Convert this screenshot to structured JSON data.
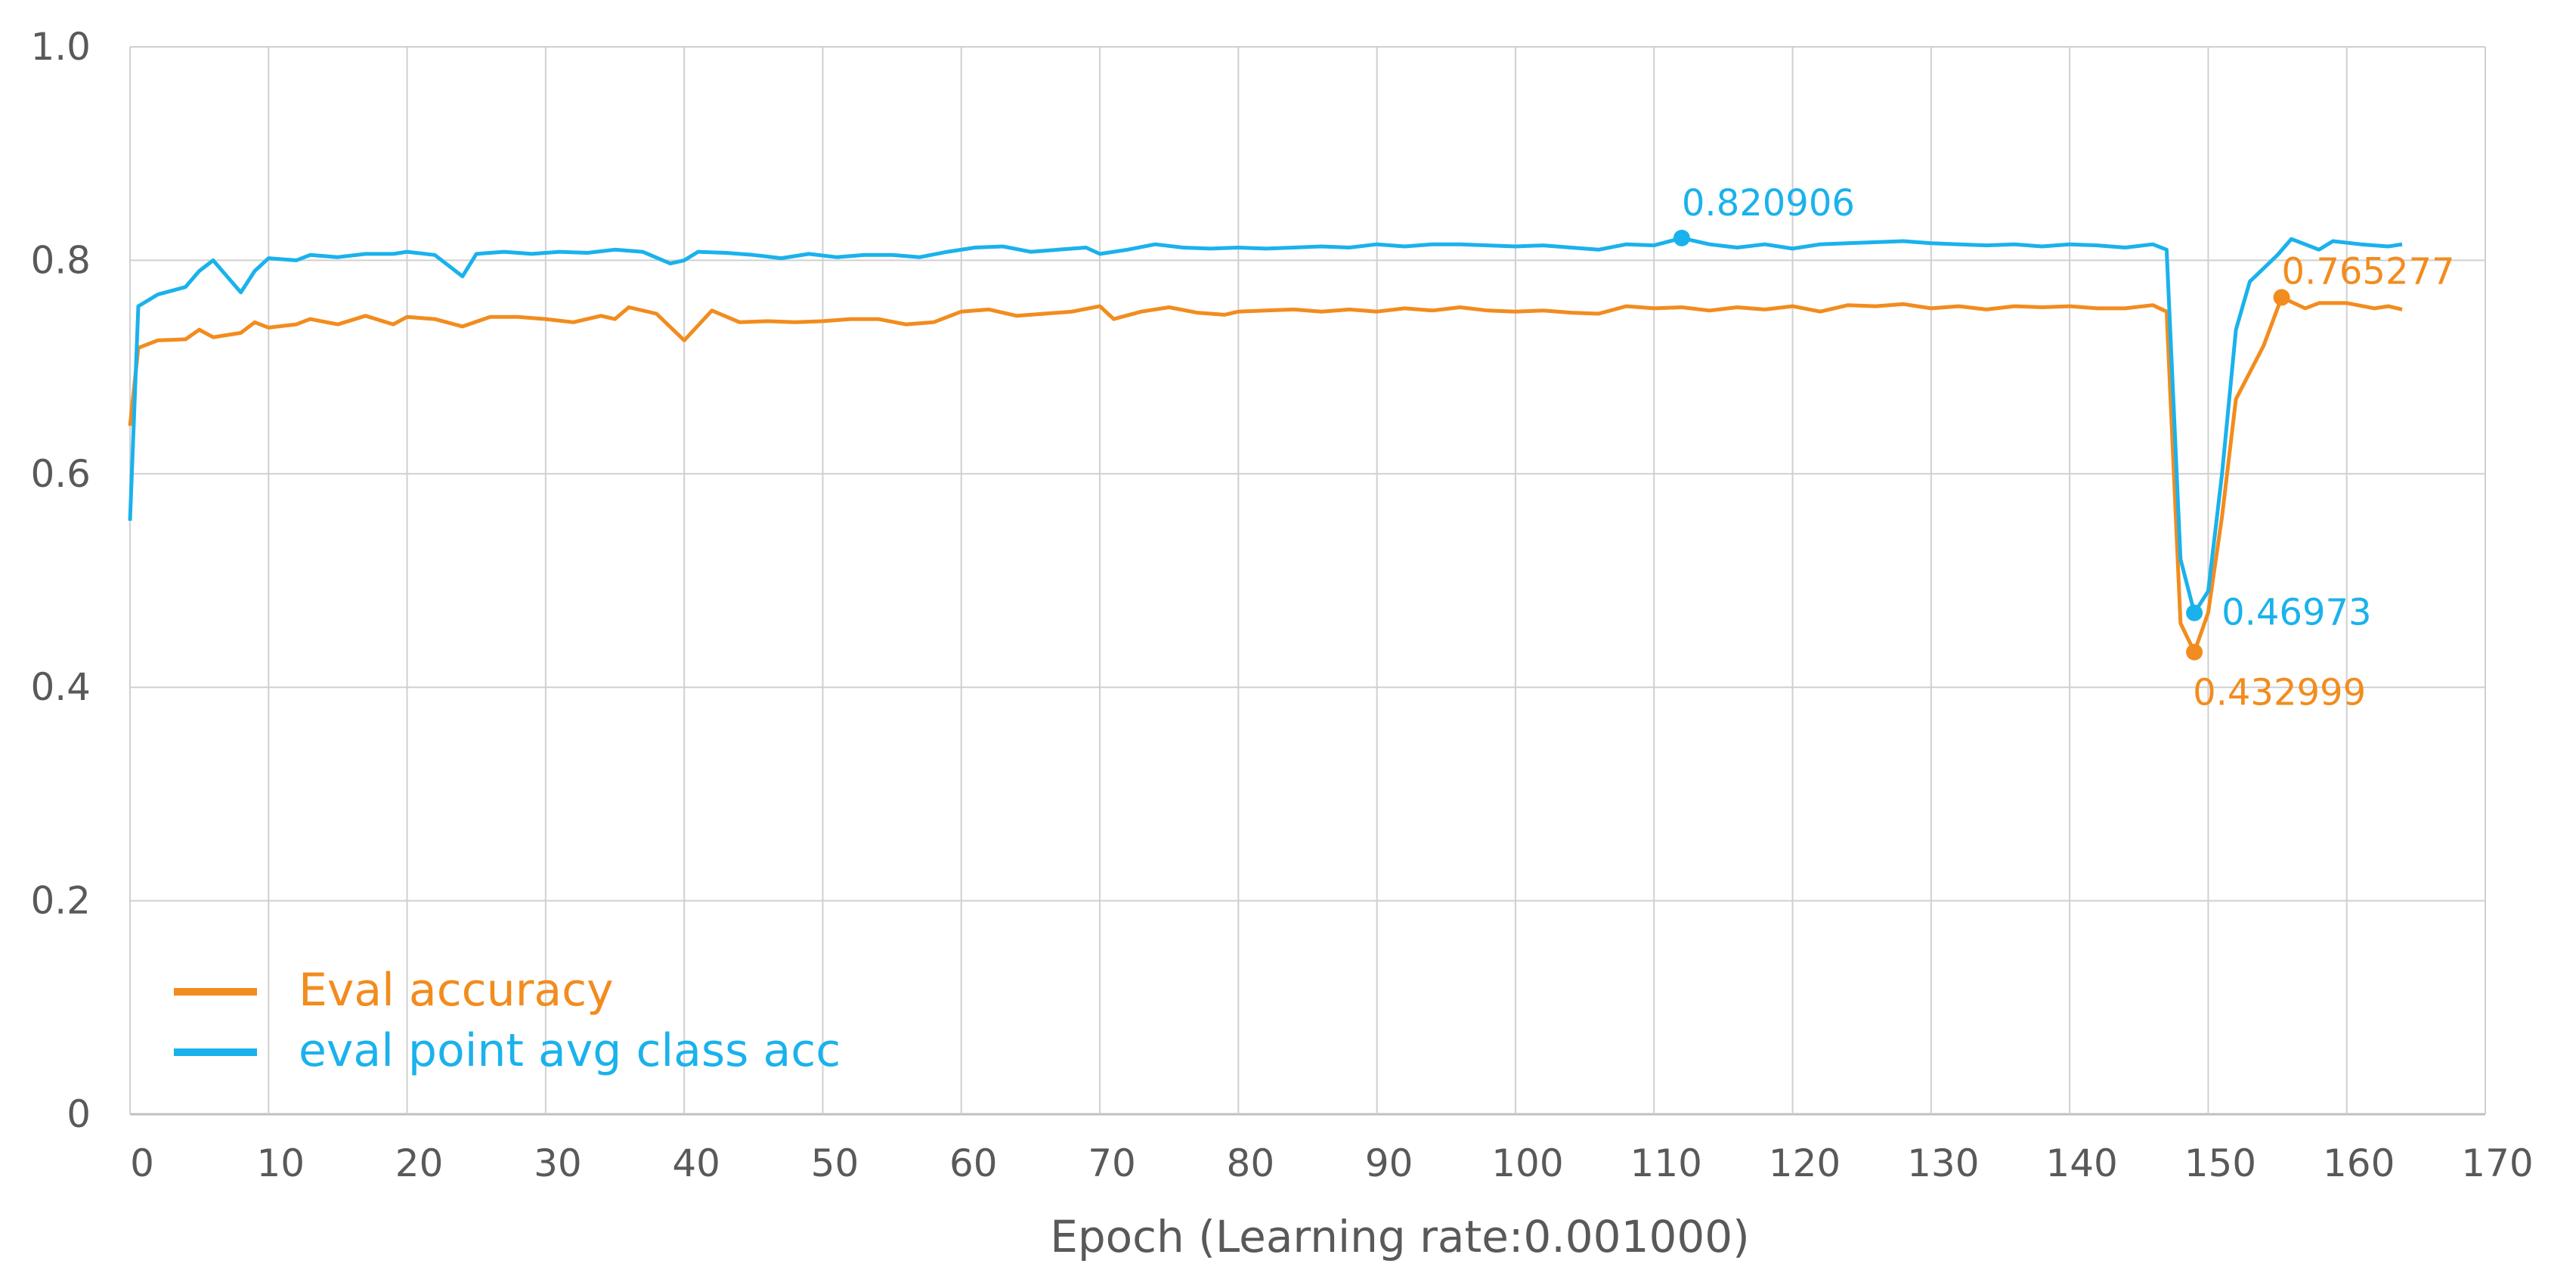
{
  "chart_data": {
    "type": "line",
    "title": "",
    "xlabel": "Epoch (Learning rate:0.001000)",
    "ylabel": "",
    "xlim": [
      0,
      170
    ],
    "ylim": [
      0,
      1.0
    ],
    "xticks": [
      "0",
      "10",
      "20",
      "30",
      "40",
      "50",
      "60",
      "70",
      "80",
      "90",
      "100",
      "110",
      "120",
      "130",
      "140",
      "150",
      "160",
      "170"
    ],
    "yticks": [
      "0",
      "0.2",
      "0.4",
      "0.6",
      "0.8",
      "1.0"
    ],
    "grid": true,
    "legend_position": "bottom-left",
    "series": [
      {
        "name": "Eval accuracy",
        "color": "#F28C1E",
        "points": [
          [
            0,
            0.645
          ],
          [
            0.6,
            0.718
          ],
          [
            2,
            0.725
          ],
          [
            4,
            0.726
          ],
          [
            5,
            0.735
          ],
          [
            6,
            0.728
          ],
          [
            8,
            0.732
          ],
          [
            9,
            0.742
          ],
          [
            10,
            0.737
          ],
          [
            12,
            0.74
          ],
          [
            13,
            0.745
          ],
          [
            15,
            0.74
          ],
          [
            17,
            0.748
          ],
          [
            19,
            0.74
          ],
          [
            20,
            0.747
          ],
          [
            22,
            0.745
          ],
          [
            24,
            0.738
          ],
          [
            26,
            0.747
          ],
          [
            28,
            0.747
          ],
          [
            30,
            0.745
          ],
          [
            32,
            0.742
          ],
          [
            34,
            0.748
          ],
          [
            35,
            0.745
          ],
          [
            36,
            0.756
          ],
          [
            38,
            0.75
          ],
          [
            40,
            0.725
          ],
          [
            42,
            0.753
          ],
          [
            44,
            0.742
          ],
          [
            46,
            0.743
          ],
          [
            48,
            0.742
          ],
          [
            50,
            0.743
          ],
          [
            52,
            0.745
          ],
          [
            54,
            0.745
          ],
          [
            56,
            0.74
          ],
          [
            58,
            0.742
          ],
          [
            60,
            0.752
          ],
          [
            62,
            0.754
          ],
          [
            64,
            0.748
          ],
          [
            66,
            0.75
          ],
          [
            68,
            0.752
          ],
          [
            70,
            0.757
          ],
          [
            71,
            0.745
          ],
          [
            73,
            0.752
          ],
          [
            75,
            0.756
          ],
          [
            77,
            0.751
          ],
          [
            79,
            0.749
          ],
          [
            80,
            0.752
          ],
          [
            82,
            0.753
          ],
          [
            84,
            0.754
          ],
          [
            86,
            0.752
          ],
          [
            88,
            0.754
          ],
          [
            90,
            0.752
          ],
          [
            92,
            0.755
          ],
          [
            94,
            0.753
          ],
          [
            96,
            0.756
          ],
          [
            98,
            0.753
          ],
          [
            100,
            0.752
          ],
          [
            102,
            0.753
          ],
          [
            104,
            0.751
          ],
          [
            106,
            0.75
          ],
          [
            108,
            0.757
          ],
          [
            110,
            0.755
          ],
          [
            112,
            0.756
          ],
          [
            114,
            0.753
          ],
          [
            116,
            0.756
          ],
          [
            118,
            0.754
          ],
          [
            120,
            0.757
          ],
          [
            122,
            0.752
          ],
          [
            124,
            0.758
          ],
          [
            126,
            0.757
          ],
          [
            128,
            0.759
          ],
          [
            130,
            0.755
          ],
          [
            132,
            0.757
          ],
          [
            134,
            0.754
          ],
          [
            136,
            0.757
          ],
          [
            138,
            0.756
          ],
          [
            140,
            0.757
          ],
          [
            142,
            0.755
          ],
          [
            144,
            0.755
          ],
          [
            146,
            0.758
          ],
          [
            147,
            0.752
          ],
          [
            148,
            0.46
          ],
          [
            149,
            0.432999
          ],
          [
            150,
            0.47
          ],
          [
            151,
            0.56
          ],
          [
            152,
            0.67
          ],
          [
            154,
            0.72
          ],
          [
            155.3,
            0.765277
          ],
          [
            157,
            0.755
          ],
          [
            158,
            0.76
          ],
          [
            160,
            0.76
          ],
          [
            162,
            0.755
          ],
          [
            163,
            0.757
          ],
          [
            164,
            0.754
          ]
        ]
      },
      {
        "name": "eval point avg class acc",
        "color": "#1AB2EC",
        "points": [
          [
            0,
            0.556
          ],
          [
            0.6,
            0.757
          ],
          [
            2,
            0.768
          ],
          [
            4,
            0.775
          ],
          [
            5,
            0.79
          ],
          [
            6,
            0.8
          ],
          [
            7,
            0.785
          ],
          [
            8,
            0.77
          ],
          [
            9,
            0.79
          ],
          [
            10,
            0.802
          ],
          [
            12,
            0.8
          ],
          [
            13,
            0.805
          ],
          [
            15,
            0.803
          ],
          [
            17,
            0.806
          ],
          [
            19,
            0.806
          ],
          [
            20,
            0.808
          ],
          [
            22,
            0.805
          ],
          [
            24,
            0.785
          ],
          [
            25,
            0.806
          ],
          [
            27,
            0.808
          ],
          [
            29,
            0.806
          ],
          [
            31,
            0.808
          ],
          [
            33,
            0.807
          ],
          [
            35,
            0.81
          ],
          [
            37,
            0.808
          ],
          [
            39,
            0.797
          ],
          [
            40,
            0.8
          ],
          [
            41,
            0.808
          ],
          [
            43,
            0.807
          ],
          [
            45,
            0.805
          ],
          [
            47,
            0.802
          ],
          [
            49,
            0.806
          ],
          [
            51,
            0.803
          ],
          [
            53,
            0.805
          ],
          [
            55,
            0.805
          ],
          [
            57,
            0.803
          ],
          [
            59,
            0.808
          ],
          [
            61,
            0.812
          ],
          [
            63,
            0.813
          ],
          [
            65,
            0.808
          ],
          [
            67,
            0.81
          ],
          [
            69,
            0.812
          ],
          [
            70,
            0.806
          ],
          [
            72,
            0.81
          ],
          [
            74,
            0.815
          ],
          [
            76,
            0.812
          ],
          [
            78,
            0.811
          ],
          [
            80,
            0.812
          ],
          [
            82,
            0.811
          ],
          [
            84,
            0.812
          ],
          [
            86,
            0.813
          ],
          [
            88,
            0.812
          ],
          [
            90,
            0.815
          ],
          [
            92,
            0.813
          ],
          [
            94,
            0.815
          ],
          [
            96,
            0.815
          ],
          [
            98,
            0.814
          ],
          [
            100,
            0.813
          ],
          [
            102,
            0.814
          ],
          [
            104,
            0.812
          ],
          [
            106,
            0.81
          ],
          [
            108,
            0.815
          ],
          [
            110,
            0.814
          ],
          [
            112,
            0.820906
          ],
          [
            114,
            0.815
          ],
          [
            116,
            0.812
          ],
          [
            118,
            0.815
          ],
          [
            120,
            0.811
          ],
          [
            122,
            0.815
          ],
          [
            124,
            0.816
          ],
          [
            126,
            0.817
          ],
          [
            128,
            0.818
          ],
          [
            130,
            0.816
          ],
          [
            132,
            0.815
          ],
          [
            134,
            0.814
          ],
          [
            136,
            0.815
          ],
          [
            138,
            0.813
          ],
          [
            140,
            0.815
          ],
          [
            142,
            0.814
          ],
          [
            144,
            0.812
          ],
          [
            146,
            0.815
          ],
          [
            147,
            0.81
          ],
          [
            148,
            0.52
          ],
          [
            149,
            0.46973
          ],
          [
            150,
            0.49
          ],
          [
            151,
            0.6
          ],
          [
            152,
            0.735
          ],
          [
            153,
            0.78
          ],
          [
            155,
            0.805
          ],
          [
            156,
            0.82
          ],
          [
            158,
            0.81
          ],
          [
            159,
            0.818
          ],
          [
            161,
            0.815
          ],
          [
            163,
            0.813
          ],
          [
            164,
            0.815
          ]
        ]
      }
    ],
    "annotations": [
      {
        "text": "0.820906",
        "x": 112,
        "y": 0.820906,
        "series": 1,
        "placement": "above"
      },
      {
        "text": "0.46973",
        "x": 149,
        "y": 0.46973,
        "series": 1,
        "placement": "right"
      },
      {
        "text": "0.432999",
        "x": 149,
        "y": 0.432999,
        "series": 0,
        "placement": "below"
      },
      {
        "text": "0.765277",
        "x": 155.3,
        "y": 0.765277,
        "series": 0,
        "placement": "above-right"
      }
    ]
  }
}
